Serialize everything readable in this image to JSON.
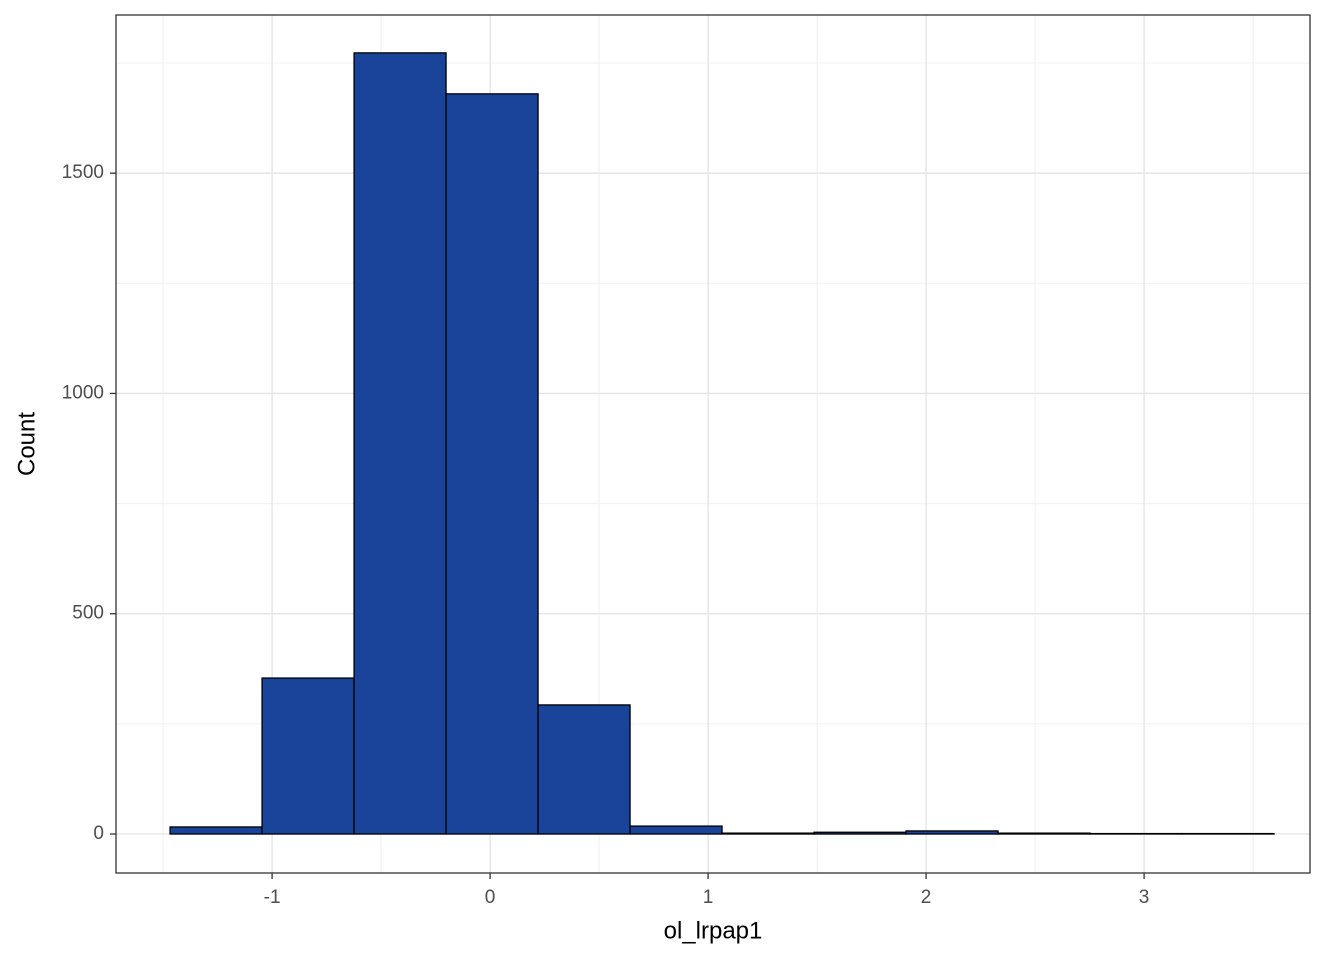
{
  "chart_data": {
    "type": "histogram",
    "x_label": "ol_lrpap1",
    "y_label": "Count",
    "bins": [
      -1.468,
      -1.046,
      -0.624,
      -0.202,
      0.22,
      0.642,
      1.064,
      1.486,
      1.908,
      2.33,
      2.752,
      3.174,
      3.596
    ],
    "values": [
      16,
      354,
      1773,
      1680,
      293,
      18,
      2,
      4,
      7,
      2,
      1,
      1
    ],
    "color": "#1a449a",
    "edge_color": "#000000",
    "xlim": [
      -1.716,
      3.761
    ],
    "ylim": [
      -88.5,
      1859
    ],
    "xticks": [
      -1,
      0,
      1,
      2,
      3
    ],
    "yticks": [
      0,
      500,
      1000,
      1500
    ],
    "grid": true
  }
}
